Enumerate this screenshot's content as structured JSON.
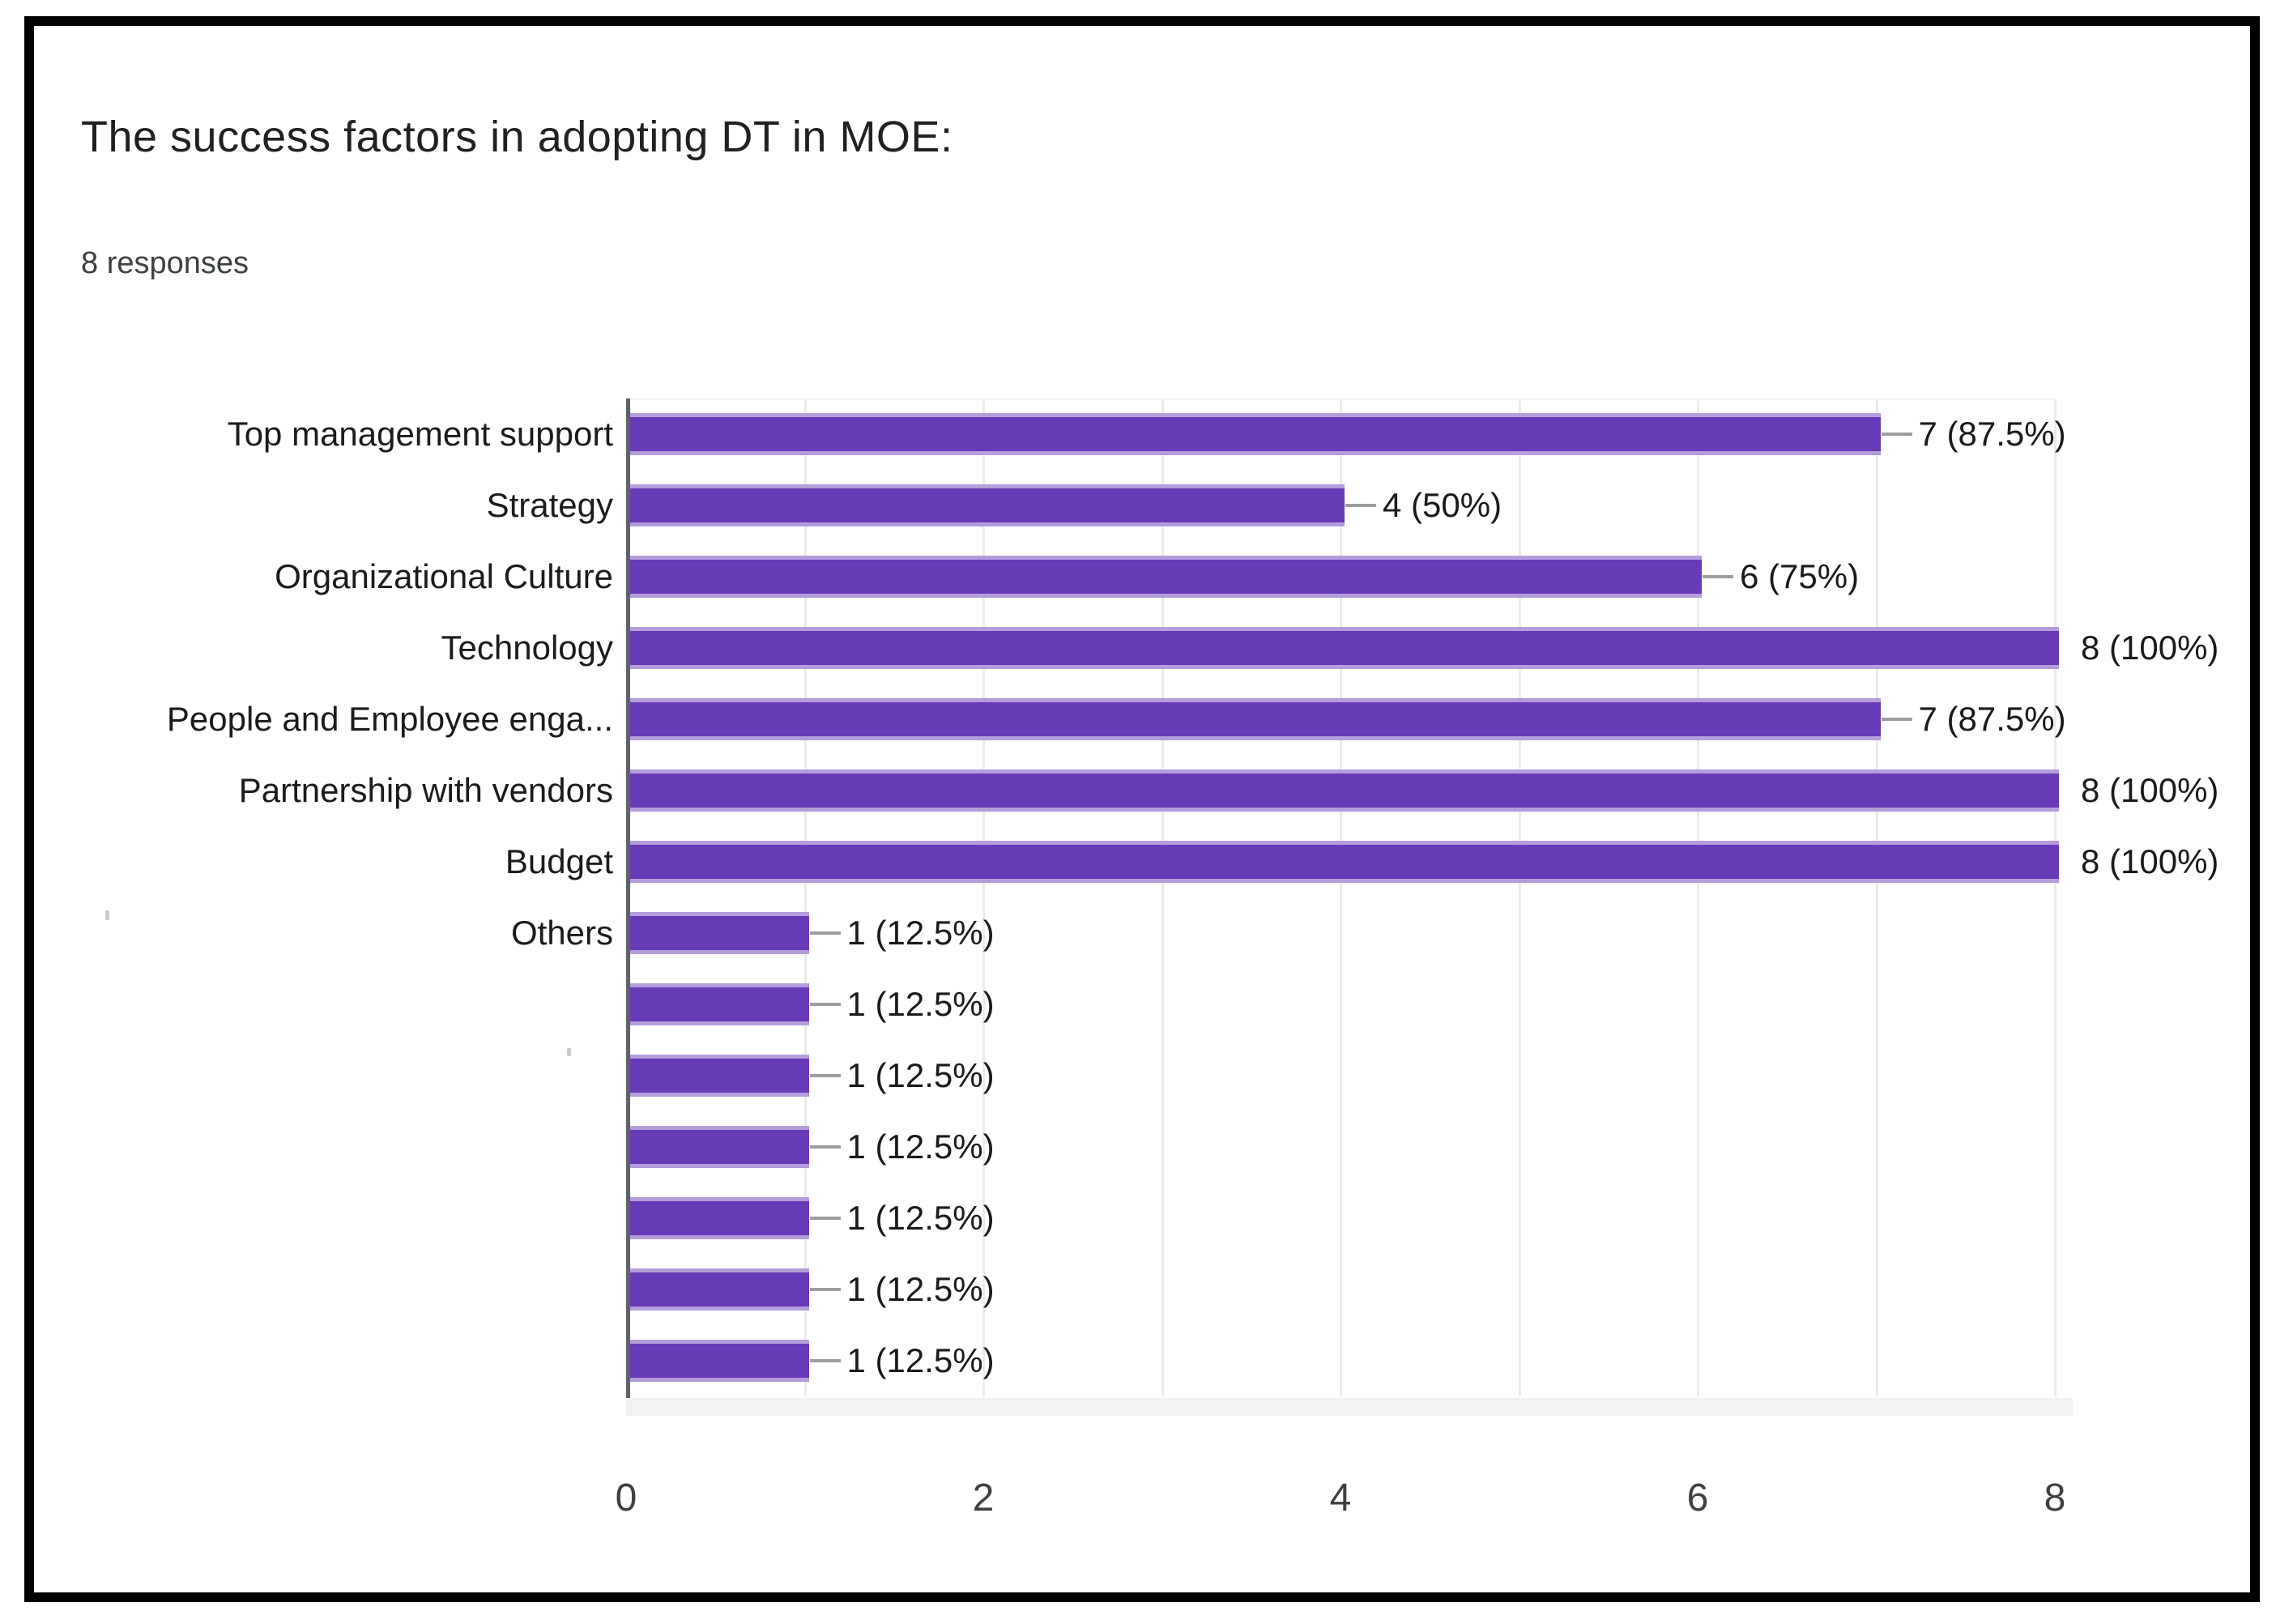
{
  "header": {
    "title": "The success factors in adopting DT in MOE:",
    "subtitle": "8 responses"
  },
  "chart_data": {
    "type": "bar",
    "orientation": "horizontal",
    "title": "The success factors in adopting DT in MOE:",
    "subtitle": "8 responses",
    "categories": [
      "Top management support",
      "Strategy",
      "Organizational Culture",
      "Technology",
      "People and Employee enga...",
      "Partnership with vendors",
      "Budget",
      "Others",
      "",
      "",
      "",
      "",
      "",
      ""
    ],
    "values": [
      7,
      4,
      6,
      8,
      7,
      8,
      8,
      1,
      1,
      1,
      1,
      1,
      1,
      1
    ],
    "value_labels": [
      "7 (87.5%)",
      "4 (50%)",
      "6 (75%)",
      "8 (100%)",
      "7 (87.5%)",
      "8 (100%)",
      "8 (100%)",
      "1 (12.5%)",
      "1 (12.5%)",
      "1 (12.5%)",
      "1 (12.5%)",
      "1 (12.5%)",
      "1 (12.5%)",
      "1 (12.5%)"
    ],
    "xlabel": "",
    "ylabel": "",
    "xlim": [
      0,
      8
    ],
    "xticks": [
      0,
      2,
      4,
      6,
      8
    ],
    "gridlines_every": 1,
    "legend_position": "none",
    "colors": {
      "bar": "#673ab7",
      "bar_edge": "#b39ddb",
      "axis_line": "#5f6368",
      "gridline": "#ececec",
      "leader_line": "#9e9e9e",
      "text": "#1b1b1b",
      "baseline_strip": "#f2f2f2",
      "frame_border": "#000000"
    }
  }
}
